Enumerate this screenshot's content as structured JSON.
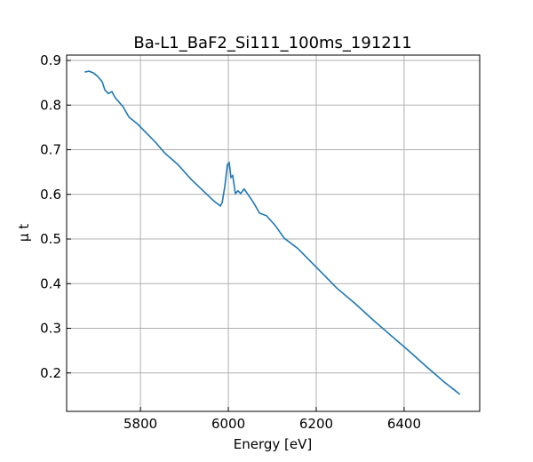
{
  "chart_data": {
    "type": "line",
    "title": "Ba-L1_BaF2_Si111_100ms_191211",
    "xlabel": "Energy [eV]",
    "ylabel": "μ t",
    "series": [
      {
        "color": "#1f77b4",
        "x": [
          5673,
          5683,
          5693,
          5703,
          5713,
          5719,
          5727,
          5735,
          5743,
          5760,
          5774,
          5794,
          5814,
          5834,
          5855,
          5885,
          5915,
          5945,
          5966,
          5982,
          5986,
          5992,
          5998,
          6002,
          6006,
          6010,
          6016,
          6022,
          6028,
          6036,
          6046,
          6057,
          6071,
          6087,
          6107,
          6127,
          6158,
          6188,
          6218,
          6248,
          6289,
          6329,
          6370,
          6410,
          6451,
          6491,
          6527
        ],
        "values": [
          0.874,
          0.876,
          0.872,
          0.864,
          0.852,
          0.834,
          0.826,
          0.83,
          0.816,
          0.797,
          0.773,
          0.757,
          0.737,
          0.717,
          0.693,
          0.667,
          0.634,
          0.606,
          0.586,
          0.574,
          0.582,
          0.618,
          0.667,
          0.671,
          0.638,
          0.642,
          0.602,
          0.608,
          0.602,
          0.612,
          0.598,
          0.582,
          0.558,
          0.552,
          0.53,
          0.502,
          0.479,
          0.449,
          0.419,
          0.389,
          0.355,
          0.319,
          0.284,
          0.25,
          0.214,
          0.18,
          0.152
        ]
      }
    ],
    "xlim": [
      5632,
      6572
    ],
    "xticks": [
      5800,
      6000,
      6200,
      6400
    ],
    "ylim": [
      0.114,
      0.912
    ],
    "yticks": [
      0.2,
      0.3,
      0.4,
      0.5,
      0.6,
      0.7,
      0.8,
      0.9
    ],
    "grid": true
  }
}
